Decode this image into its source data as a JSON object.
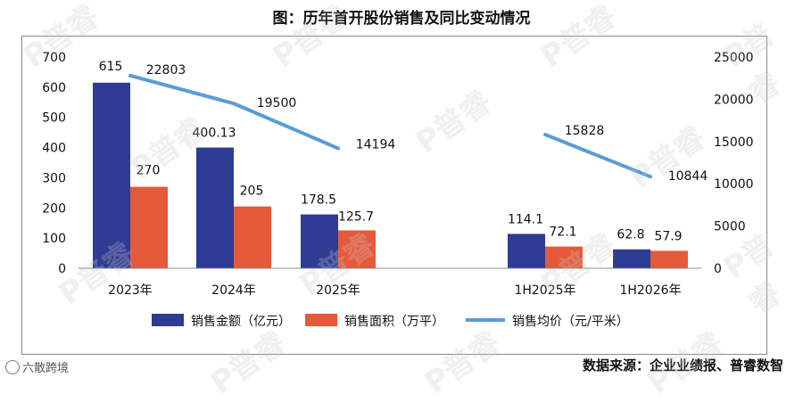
{
  "chart_data": {
    "type": "bar-line-combo",
    "title": "图：历年首开股份销售及同比变动情况",
    "categories": [
      "2023年",
      "2024年",
      "2025年",
      "1H2025年",
      "1H2026年"
    ],
    "series": [
      {
        "name": "销售金额（亿元）",
        "type": "bar",
        "axis": "left",
        "color": "#2e3c94",
        "values": [
          615,
          400.13,
          178.5,
          114.1,
          62.8
        ],
        "labels": [
          "615",
          "400.13",
          "178.5",
          "114.1",
          "62.8"
        ]
      },
      {
        "name": "销售面积（万平）",
        "type": "bar",
        "axis": "left",
        "color": "#e55a3b",
        "values": [
          270,
          205,
          125.7,
          72.1,
          57.9
        ],
        "labels": [
          "270",
          "205",
          "125.7",
          "72.1",
          "57.9"
        ]
      },
      {
        "name": "销售均价（元/平米）",
        "type": "line",
        "axis": "right",
        "color": "#5b9bd5",
        "values": [
          22803,
          19500,
          14194,
          15828,
          10844
        ],
        "labels": [
          "22803",
          "19500",
          "14194",
          "15828",
          "10844"
        ]
      }
    ],
    "y_left": {
      "min": 0,
      "max": 700,
      "ticks": [
        0,
        100,
        200,
        300,
        400,
        500,
        600,
        700
      ]
    },
    "y_right": {
      "min": 0,
      "max": 25000,
      "ticks": [
        0,
        5000,
        10000,
        15000,
        20000,
        25000
      ]
    },
    "legend_position": "bottom",
    "grid": false
  },
  "source_text": "数据来源：企业业绩报、普睿数智",
  "corner_logo_text": "六散跨境",
  "watermark_text": "P普睿"
}
